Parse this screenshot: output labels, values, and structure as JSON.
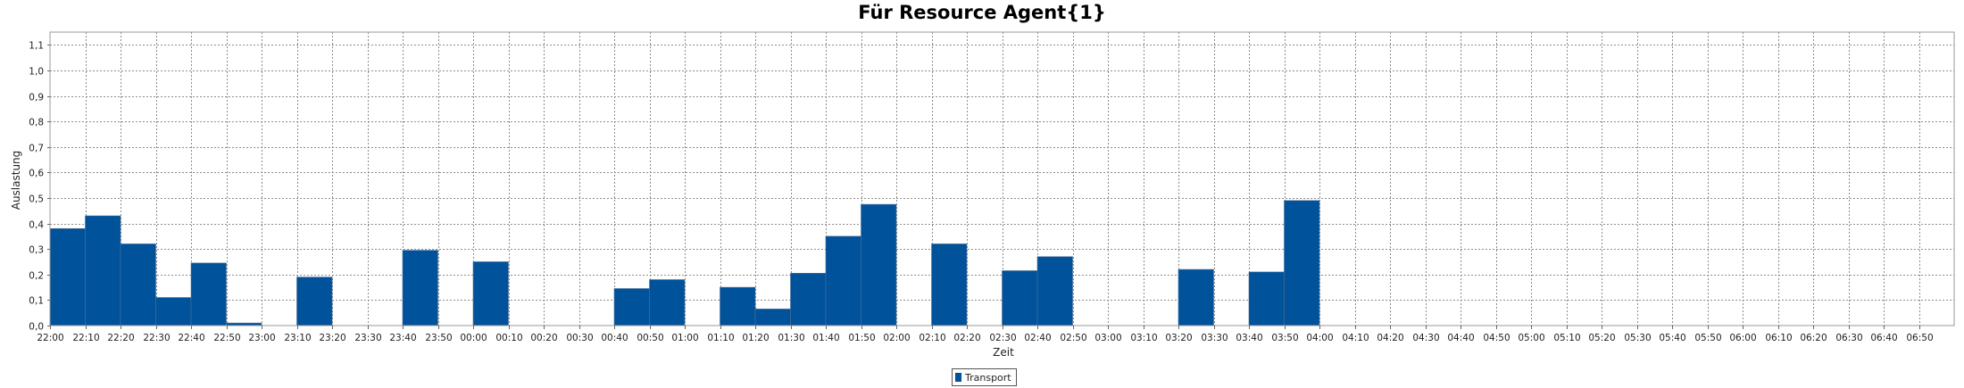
{
  "chart_data": {
    "type": "bar",
    "title": "Für Resource Agent{1}",
    "xlabel": "Zeit",
    "ylabel": "Auslastung",
    "ylim": [
      0,
      1.15
    ],
    "y_ticks": [
      "0,0",
      "0,1",
      "0,2",
      "0,3",
      "0,4",
      "0,5",
      "0,6",
      "0,7",
      "0,8",
      "0,9",
      "1,0",
      "1,1"
    ],
    "grid": true,
    "legend_position": "bottom-center",
    "categories": [
      "22:00",
      "22:10",
      "22:20",
      "22:30",
      "22:40",
      "22:50",
      "23:00",
      "23:10",
      "23:20",
      "23:30",
      "23:40",
      "23:50",
      "00:00",
      "00:10",
      "00:20",
      "00:30",
      "00:40",
      "00:50",
      "01:00",
      "01:10",
      "01:20",
      "01:30",
      "01:40",
      "01:50",
      "02:00",
      "02:10",
      "02:20",
      "02:30",
      "02:40",
      "02:50",
      "03:00",
      "03:10",
      "03:20",
      "03:30",
      "03:40",
      "03:50",
      "04:00",
      "04:10",
      "04:20",
      "04:30",
      "04:40",
      "04:50",
      "05:00",
      "05:10",
      "05:20",
      "05:30",
      "05:40",
      "05:50",
      "06:00",
      "06:10",
      "06:20",
      "06:30",
      "06:40",
      "06:50"
    ],
    "series": [
      {
        "name": "Transport",
        "color": "#00529b",
        "values": [
          0.38,
          0.43,
          0.32,
          0.11,
          0.245,
          0.01,
          0,
          0.19,
          0,
          0,
          0.295,
          0,
          0.25,
          0,
          0,
          0,
          0.145,
          0.18,
          0,
          0.15,
          0.065,
          0.205,
          0.35,
          0.475,
          0,
          0.32,
          0,
          0.215,
          0.27,
          0,
          0,
          0,
          0.22,
          0,
          0.21,
          0.49,
          0,
          0,
          0,
          0,
          0,
          0,
          0,
          0,
          0,
          0,
          0,
          0,
          0,
          0,
          0,
          0,
          0,
          0
        ]
      }
    ]
  }
}
